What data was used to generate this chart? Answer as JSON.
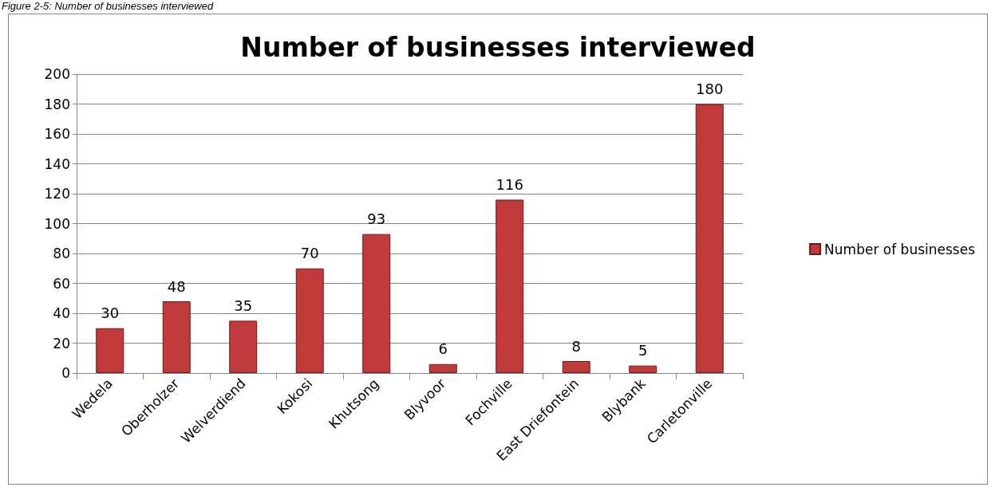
{
  "chart_data": {
    "type": "bar",
    "title": "Number of businesses interviewed",
    "annotations": [
      "Figure 2-5: Number of businesses interviewed"
    ],
    "categories": [
      "Wedela",
      "Oberholzer",
      "Welverdiend",
      "Kokosi",
      "Khutsong",
      "Blyvoor",
      "Fochville",
      "East Driefontein",
      "Blybank",
      "Carletonville"
    ],
    "series": [
      {
        "name": "Number of businesses",
        "color": "#c0393b",
        "values": [
          30,
          48,
          35,
          70,
          93,
          6,
          116,
          8,
          5,
          180
        ]
      }
    ],
    "ylim": [
      0,
      200
    ],
    "yticks": [
      0,
      20,
      40,
      60,
      80,
      100,
      120,
      140,
      160,
      180,
      200
    ],
    "grid": "y",
    "legend": "right",
    "data_labels": true
  }
}
